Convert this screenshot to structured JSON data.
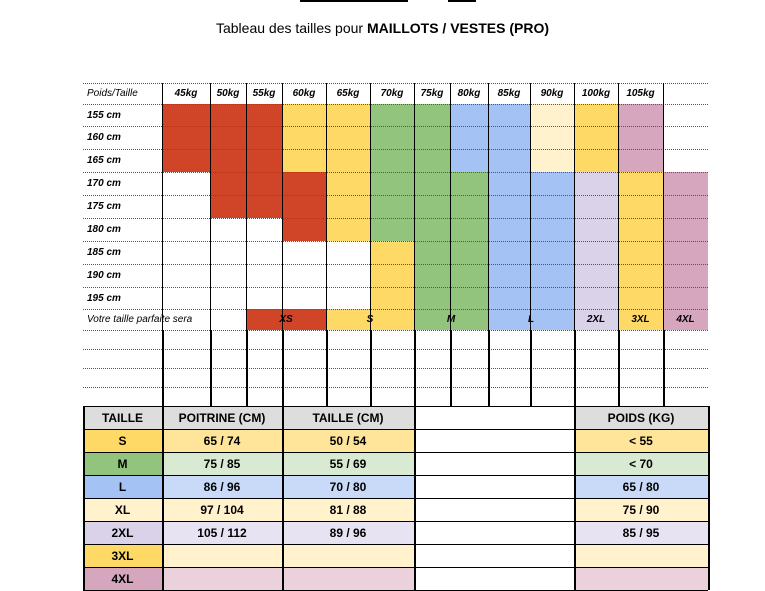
{
  "title": {
    "prefix": "Tableau des tailles pour ",
    "bold": "MAILLOTS / VESTES (PRO)"
  },
  "colors": {
    "red": "#d04427",
    "yellow": "#ffd966",
    "green": "#93c47d",
    "blue": "#a4c2f4",
    "cream": "#fff2cc",
    "lavender": "#d9d2e9",
    "pink": "#d5a6bd",
    "white": "#ffffff"
  },
  "chart": {
    "corner": "Poids/Taille",
    "weights": [
      "45kg",
      "50kg",
      "55kg",
      "60kg",
      "65kg",
      "70kg",
      "75kg",
      "80kg",
      "85kg",
      "90kg",
      "100kg",
      "105kg",
      ""
    ],
    "heights": [
      "155 cm",
      "160 cm",
      "165 cm",
      "170 cm",
      "175 cm",
      "180 cm",
      "185 cm",
      "190 cm",
      "195 cm"
    ],
    "grid": [
      [
        "red",
        "red",
        "red",
        "yellow",
        "yellow",
        "green",
        "green",
        "blue",
        "blue",
        "cream",
        "yellow",
        "pink",
        "white"
      ],
      [
        "red",
        "red",
        "red",
        "yellow",
        "yellow",
        "green",
        "green",
        "blue",
        "blue",
        "cream",
        "yellow",
        "pink",
        "white"
      ],
      [
        "red",
        "red",
        "red",
        "yellow",
        "yellow",
        "green",
        "green",
        "blue",
        "blue",
        "cream",
        "yellow",
        "pink",
        "white"
      ],
      [
        "white",
        "red",
        "red",
        "red",
        "yellow",
        "green",
        "green",
        "green",
        "blue",
        "blue",
        "lavender",
        "yellow",
        "pink"
      ],
      [
        "white",
        "red",
        "red",
        "red",
        "yellow",
        "green",
        "green",
        "green",
        "blue",
        "blue",
        "lavender",
        "yellow",
        "pink"
      ],
      [
        "white",
        "white",
        "white",
        "red",
        "yellow",
        "green",
        "green",
        "green",
        "blue",
        "blue",
        "lavender",
        "yellow",
        "pink"
      ],
      [
        "white",
        "white",
        "white",
        "white",
        "white",
        "yellow",
        "green",
        "green",
        "blue",
        "blue",
        "lavender",
        "yellow",
        "pink"
      ],
      [
        "white",
        "white",
        "white",
        "white",
        "white",
        "yellow",
        "green",
        "green",
        "blue",
        "blue",
        "lavender",
        "yellow",
        "pink"
      ],
      [
        "white",
        "white",
        "white",
        "white",
        "white",
        "yellow",
        "green",
        "green",
        "blue",
        "blue",
        "lavender",
        "yellow",
        "pink"
      ]
    ],
    "result_label": "Votre taille parfaite sera",
    "results": [
      {
        "label": "XS",
        "color": "red"
      },
      {
        "label": "S",
        "color": "yellow"
      },
      {
        "label": "M",
        "color": "green"
      },
      {
        "label": "L",
        "color": "blue"
      },
      {
        "label": "2XL",
        "color": "lavender"
      },
      {
        "label": "3XL",
        "color": "yellow"
      },
      {
        "label": "4XL",
        "color": "pink"
      }
    ]
  },
  "measures": {
    "headers": {
      "taille": "TAILLE",
      "poitrine": "POITRINE (CM)",
      "tour": "TAILLE (CM)",
      "poids": "POIDS (KG)"
    },
    "rows": [
      {
        "size": "S",
        "poitrine": "65 / 74",
        "tour": "50 / 54",
        "poids": "< 55",
        "dark": "#ffd966",
        "light": "#ffe599"
      },
      {
        "size": "M",
        "poitrine": "75 / 85",
        "tour": "55 / 69",
        "poids": "< 70",
        "dark": "#93c47d",
        "light": "#d9ead3"
      },
      {
        "size": "L",
        "poitrine": "86 / 96",
        "tour": "70 / 80",
        "poids": "65 / 80",
        "dark": "#a4c2f4",
        "light": "#c9daf8"
      },
      {
        "size": "XL",
        "poitrine": "97 / 104",
        "tour": "81 / 88",
        "poids": "75 / 90",
        "dark": "#fff2cc",
        "light": "#fff2cc"
      },
      {
        "size": "2XL",
        "poitrine": "105 / 112",
        "tour": "89 / 96",
        "poids": "85 / 95",
        "dark": "#d9d2e9",
        "light": "#e8e3f3"
      },
      {
        "size": "3XL",
        "poitrine": "",
        "tour": "",
        "poids": "",
        "dark": "#ffd966",
        "light": "#fff2cc"
      },
      {
        "size": "4XL",
        "poitrine": "",
        "tour": "",
        "poids": "",
        "dark": "#d5a6bd",
        "light": "#ead1dc"
      }
    ]
  }
}
